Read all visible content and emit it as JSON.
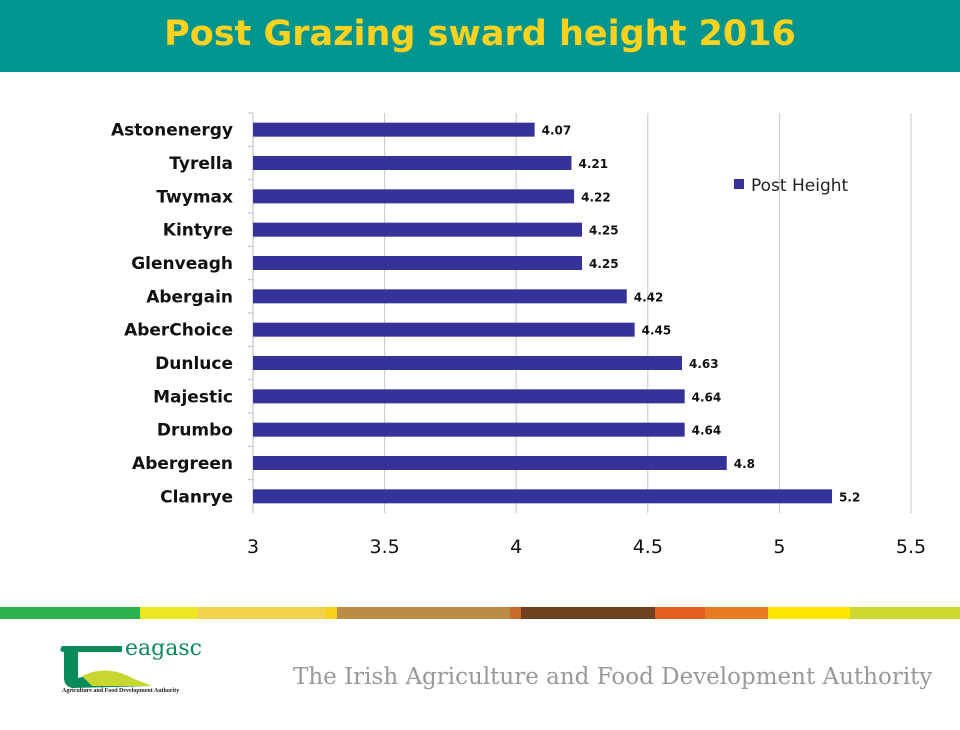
{
  "header": {
    "title": "Post Grazing sward height 2016"
  },
  "footer": {
    "logo_text": "eagasc",
    "logo_subtitle": "Agriculture and Food Development Authority",
    "tagline": "The Irish Agriculture and Food Development Authority",
    "stripe_colors": [
      "#2db14f",
      "#ece720",
      "#f1d34f",
      "#f6d21c",
      "#bb8c45",
      "#c96b2b",
      "#6d4020",
      "#e55f23",
      "#e87c22",
      "#fde500",
      "#cdd82f"
    ]
  },
  "chart_data": {
    "type": "bar",
    "orientation": "horizontal",
    "categories": [
      "Astonenergy",
      "Tyrella",
      "Twymax",
      "Kintyre",
      "Glenveagh",
      "Abergain",
      "AberChoice",
      "Dunluce",
      "Majestic",
      "Drumbo",
      "Abergreen",
      "Clanrye"
    ],
    "series": [
      {
        "name": "Post Height",
        "color": "#35339a",
        "values": [
          4.07,
          4.21,
          4.22,
          4.25,
          4.25,
          4.42,
          4.45,
          4.63,
          4.64,
          4.64,
          4.8,
          5.2
        ]
      }
    ],
    "data_labels": [
      "4.07",
      "4.21",
      "4.22",
      "4.25",
      "4.25",
      "4.42",
      "4.45",
      "4.63",
      "4.64",
      "4.64",
      "4.8",
      "5.2"
    ],
    "xlim": [
      3,
      5.5
    ],
    "xticks": [
      "3",
      "3.5",
      "4",
      "4.5",
      "5",
      "5.5"
    ],
    "grid": "vertical",
    "legend": "top-right"
  }
}
